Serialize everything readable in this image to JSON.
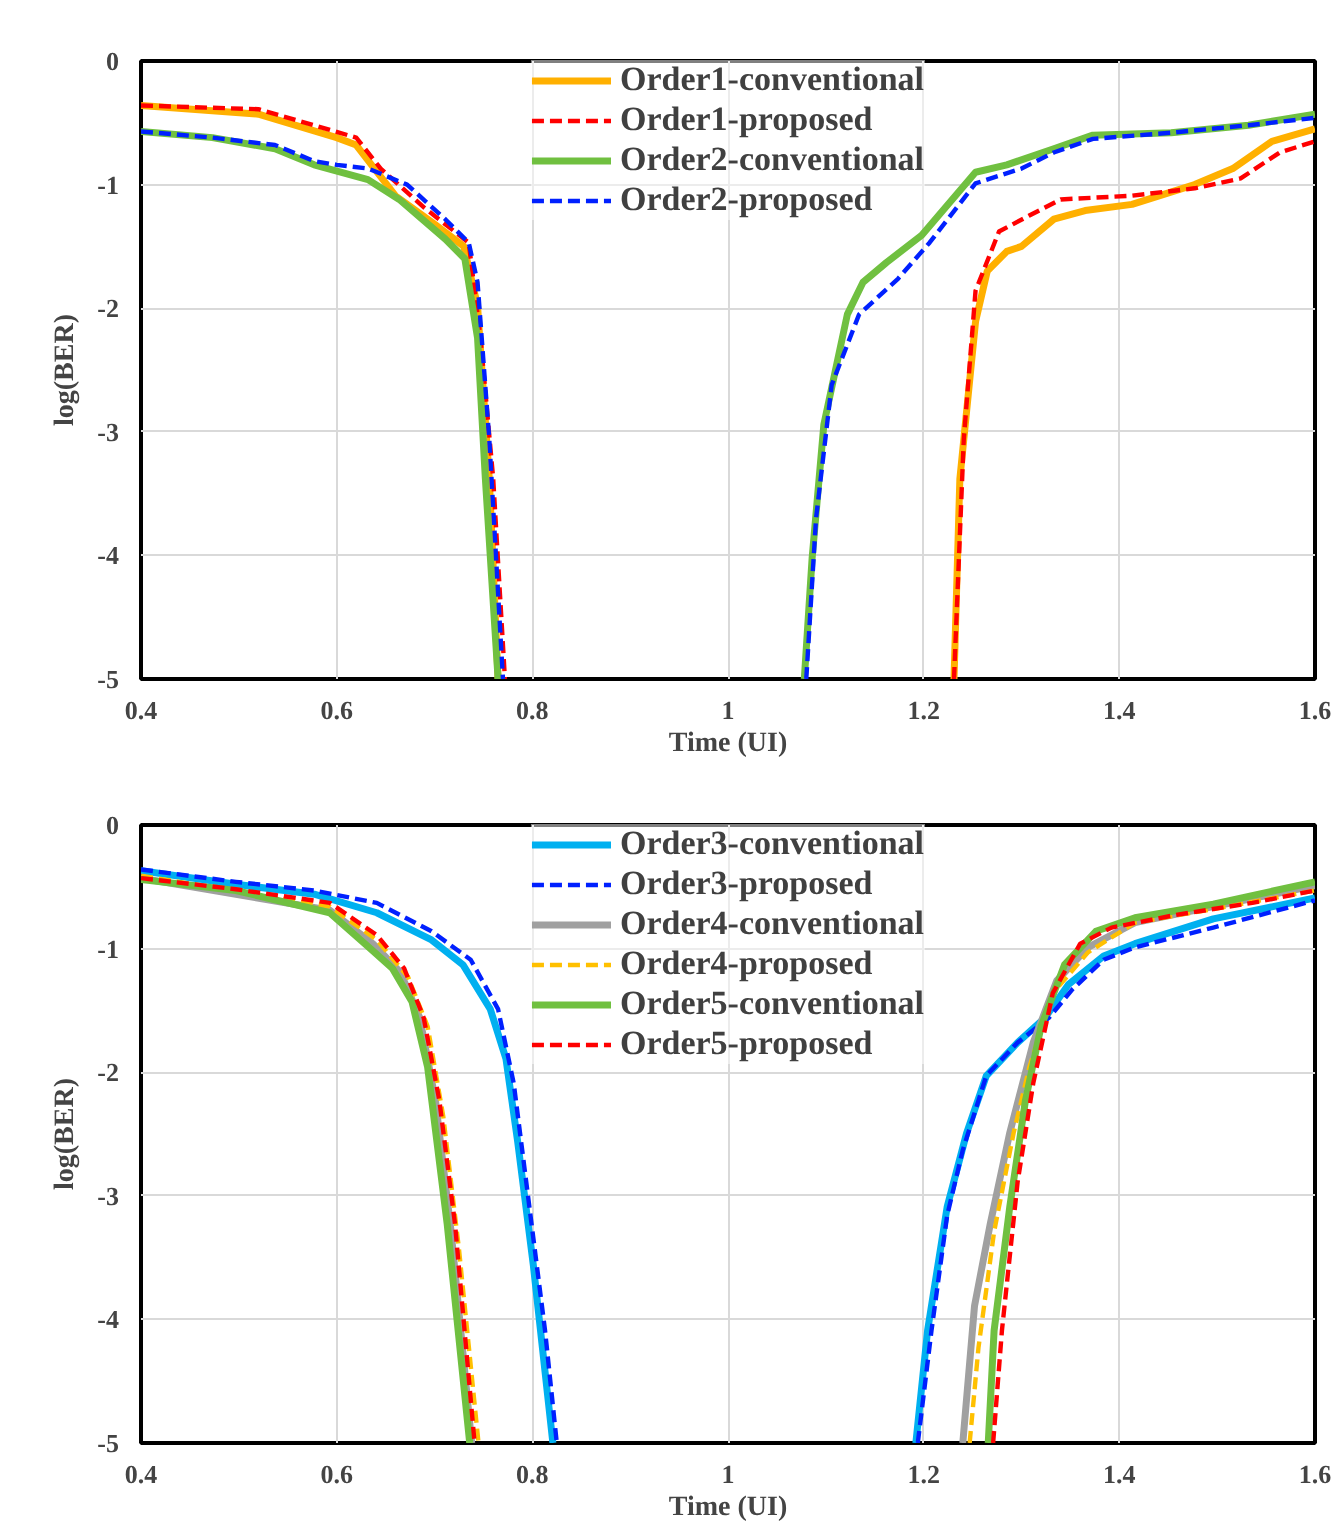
{
  "chart_data": [
    {
      "type": "line",
      "xlabel": "Time (UI)",
      "ylabel": "log(BER)",
      "xlim": [
        0.4,
        1.6
      ],
      "ylim": [
        -5,
        0
      ],
      "xticks": [
        0.4,
        0.6,
        0.8,
        {
          "value": 1.0,
          "label": "1"
        },
        1.2,
        1.4,
        1.6
      ],
      "yticks": [
        -5,
        -4,
        -3,
        -2,
        -1,
        0
      ],
      "grid": true,
      "legend": "top",
      "marker": "none",
      "series": [
        {
          "name": "Order1-conventional",
          "color": "#ffb000",
          "line_style": "solid",
          "x": [
            0.4,
            0.52,
            0.6,
            0.62,
            0.66,
            0.7,
            0.73,
            0.744,
            0.756,
            0.765,
            null,
            1.231,
            1.237,
            1.253,
            1.265,
            1.285,
            1.3,
            1.333,
            1.365,
            1.413,
            1.477,
            1.516,
            1.556,
            1.6
          ],
          "values": [
            -0.36,
            -0.43,
            -0.62,
            -0.68,
            -1.09,
            -1.32,
            -1.5,
            -1.98,
            -3.38,
            -5,
            null,
            -5,
            -3.38,
            -2.11,
            -1.7,
            -1.54,
            -1.5,
            -1.28,
            -1.21,
            -1.16,
            -1.0,
            -0.87,
            -0.65,
            -0.55
          ]
        },
        {
          "name": "Order1-proposed",
          "color": "#ff0000",
          "line_style": "dashed",
          "x": [
            0.4,
            0.52,
            0.577,
            0.62,
            0.645,
            0.69,
            0.735,
            0.747,
            0.76,
            0.772,
            null,
            1.231,
            1.241,
            1.253,
            1.277,
            1.308,
            1.34,
            1.413,
            1.477,
            1.524,
            1.564,
            1.6
          ],
          "values": [
            -0.36,
            -0.39,
            -0.52,
            -0.62,
            -0.87,
            -1.19,
            -1.47,
            -2.24,
            -3.38,
            -5,
            null,
            -5,
            -3.06,
            -1.86,
            -1.38,
            -1.25,
            -1.12,
            -1.09,
            -1.03,
            -0.95,
            -0.74,
            -0.65
          ]
        },
        {
          "name": "Order2-conventional",
          "color": "#70c040",
          "line_style": "solid",
          "x": [
            0.4,
            0.473,
            0.537,
            0.577,
            0.632,
            0.664,
            0.711,
            0.731,
            0.744,
            0.752,
            0.765,
            null,
            1.078,
            1.086,
            1.098,
            1.122,
            1.138,
            1.162,
            1.198,
            1.253,
            1.285,
            1.333,
            1.373,
            1.453,
            1.532,
            1.6
          ],
          "values": [
            -0.57,
            -0.62,
            -0.71,
            -0.84,
            -0.96,
            -1.12,
            -1.44,
            -1.6,
            -2.24,
            -3.38,
            -5,
            null,
            -5,
            -4.02,
            -2.94,
            -2.05,
            -1.79,
            -1.63,
            -1.41,
            -0.9,
            -0.84,
            -0.71,
            -0.6,
            -0.58,
            -0.52,
            -0.43
          ]
        },
        {
          "name": "Order2-proposed",
          "color": "#0020ff",
          "line_style": "dashed",
          "x": [
            0.4,
            0.473,
            0.537,
            0.577,
            0.6,
            0.632,
            0.672,
            0.711,
            0.735,
            0.744,
            0.756,
            0.77,
            null,
            1.08,
            1.09,
            1.106,
            1.134,
            1.174,
            1.206,
            1.253,
            1.3,
            1.333,
            1.373,
            1.453,
            1.532,
            1.6
          ],
          "values": [
            -0.57,
            -0.62,
            -0.68,
            -0.81,
            -0.84,
            -0.87,
            -1.0,
            -1.28,
            -1.47,
            -1.79,
            -3.06,
            -5,
            null,
            -5,
            -3.7,
            -2.62,
            -2.05,
            -1.76,
            -1.47,
            -0.99,
            -0.87,
            -0.74,
            -0.63,
            -0.58,
            -0.52,
            -0.46
          ]
        }
      ]
    },
    {
      "type": "line",
      "xlabel": "Time (UI)",
      "ylabel": "log(BER)",
      "xlim": [
        0.4,
        1.6
      ],
      "ylim": [
        -5,
        0
      ],
      "xticks": [
        0.4,
        0.6,
        0.8,
        {
          "value": 1.0,
          "label": "1"
        },
        1.2,
        1.4,
        1.6
      ],
      "yticks": [
        -5,
        -4,
        -3,
        -2,
        -1,
        0
      ],
      "grid": true,
      "legend": "top",
      "marker": "none",
      "series": [
        {
          "name": "Order3-conventional",
          "color": "#00b0f0",
          "line_style": "solid",
          "x": [
            0.4,
            0.497,
            0.577,
            0.641,
            0.697,
            0.729,
            0.757,
            0.773,
            0.785,
            0.801,
            0.821,
            null,
            1.192,
            1.204,
            1.224,
            1.244,
            1.264,
            1.296,
            1.324,
            1.348,
            1.384,
            1.416,
            1.496,
            1.6
          ],
          "values": [
            -0.37,
            -0.48,
            -0.56,
            -0.71,
            -0.93,
            -1.13,
            -1.49,
            -1.89,
            -2.56,
            -3.56,
            -5,
            null,
            -5,
            -4.09,
            -3.09,
            -2.49,
            -2.03,
            -1.76,
            -1.56,
            -1.29,
            -1.06,
            -0.96,
            -0.76,
            -0.59
          ]
        },
        {
          "name": "Order3-proposed",
          "color": "#0020ff",
          "line_style": "dashed",
          "x": [
            0.4,
            0.497,
            0.577,
            0.641,
            0.697,
            0.737,
            0.765,
            0.781,
            0.797,
            0.813,
            0.825,
            null,
            1.194,
            1.208,
            1.224,
            1.24,
            1.264,
            1.296,
            1.328,
            1.352,
            1.384,
            1.416,
            1.496,
            1.6
          ],
          "values": [
            -0.36,
            -0.46,
            -0.53,
            -0.63,
            -0.86,
            -1.09,
            -1.49,
            -2.09,
            -3.09,
            -4.09,
            -5,
            null,
            -5,
            -4.09,
            -3.16,
            -2.63,
            -2.03,
            -1.76,
            -1.56,
            -1.33,
            -1.09,
            -0.99,
            -0.83,
            -0.61
          ]
        },
        {
          "name": "Order4-conventional",
          "color": "#a0a0a0",
          "line_style": "solid",
          "x": [
            0.4,
            0.593,
            0.637,
            0.665,
            0.685,
            0.701,
            0.717,
            0.738,
            null,
            1.24,
            1.252,
            1.268,
            1.288,
            1.312,
            1.336,
            1.368,
            1.416,
            1.496,
            1.6
          ],
          "values": [
            -0.43,
            -0.69,
            -0.96,
            -1.19,
            -1.56,
            -2.23,
            -3.29,
            -5,
            null,
            -5,
            -3.89,
            -3.23,
            -2.49,
            -1.76,
            -1.26,
            -0.99,
            -0.79,
            -0.66,
            -0.49
          ]
        },
        {
          "name": "Order4-proposed",
          "color": "#ffc000",
          "line_style": "dashed",
          "x": [
            0.4,
            0.593,
            0.641,
            0.673,
            0.693,
            0.709,
            0.725,
            0.745,
            null,
            1.247,
            1.256,
            1.272,
            1.292,
            1.308,
            1.332,
            1.368,
            1.416,
            1.496,
            1.6
          ],
          "values": [
            -0.41,
            -0.66,
            -0.93,
            -1.23,
            -1.63,
            -2.36,
            -3.43,
            -5,
            null,
            -5,
            -4.23,
            -3.29,
            -2.49,
            -1.96,
            -1.36,
            -1.03,
            -0.79,
            -0.68,
            -0.53
          ]
        },
        {
          "name": "Order5-conventional",
          "color": "#70c040",
          "line_style": "solid",
          "x": [
            0.4,
            0.497,
            0.593,
            0.633,
            0.657,
            0.677,
            0.693,
            0.713,
            0.736,
            null,
            1.266,
            1.272,
            1.288,
            1.304,
            1.32,
            1.344,
            1.376,
            1.416,
            1.496,
            1.6
          ],
          "values": [
            -0.44,
            -0.53,
            -0.71,
            -0.99,
            -1.16,
            -1.43,
            -1.96,
            -3.23,
            -5,
            null,
            -5,
            -4.09,
            -3.09,
            -2.23,
            -1.63,
            -1.13,
            -0.86,
            -0.75,
            -0.64,
            -0.46
          ]
        },
        {
          "name": "Order5-proposed",
          "color": "#ff0000",
          "line_style": "dashed",
          "x": [
            0.4,
            0.497,
            0.593,
            0.641,
            0.669,
            0.689,
            0.705,
            0.721,
            0.741,
            null,
            1.271,
            1.28,
            1.296,
            1.312,
            1.332,
            1.36,
            1.392,
            1.456,
            1.536,
            1.6
          ],
          "values": [
            -0.43,
            -0.52,
            -0.63,
            -0.89,
            -1.16,
            -1.56,
            -2.23,
            -3.23,
            -5,
            null,
            -5,
            -4.09,
            -2.89,
            -2.09,
            -1.36,
            -0.96,
            -0.83,
            -0.73,
            -0.63,
            -0.53
          ]
        }
      ]
    }
  ]
}
